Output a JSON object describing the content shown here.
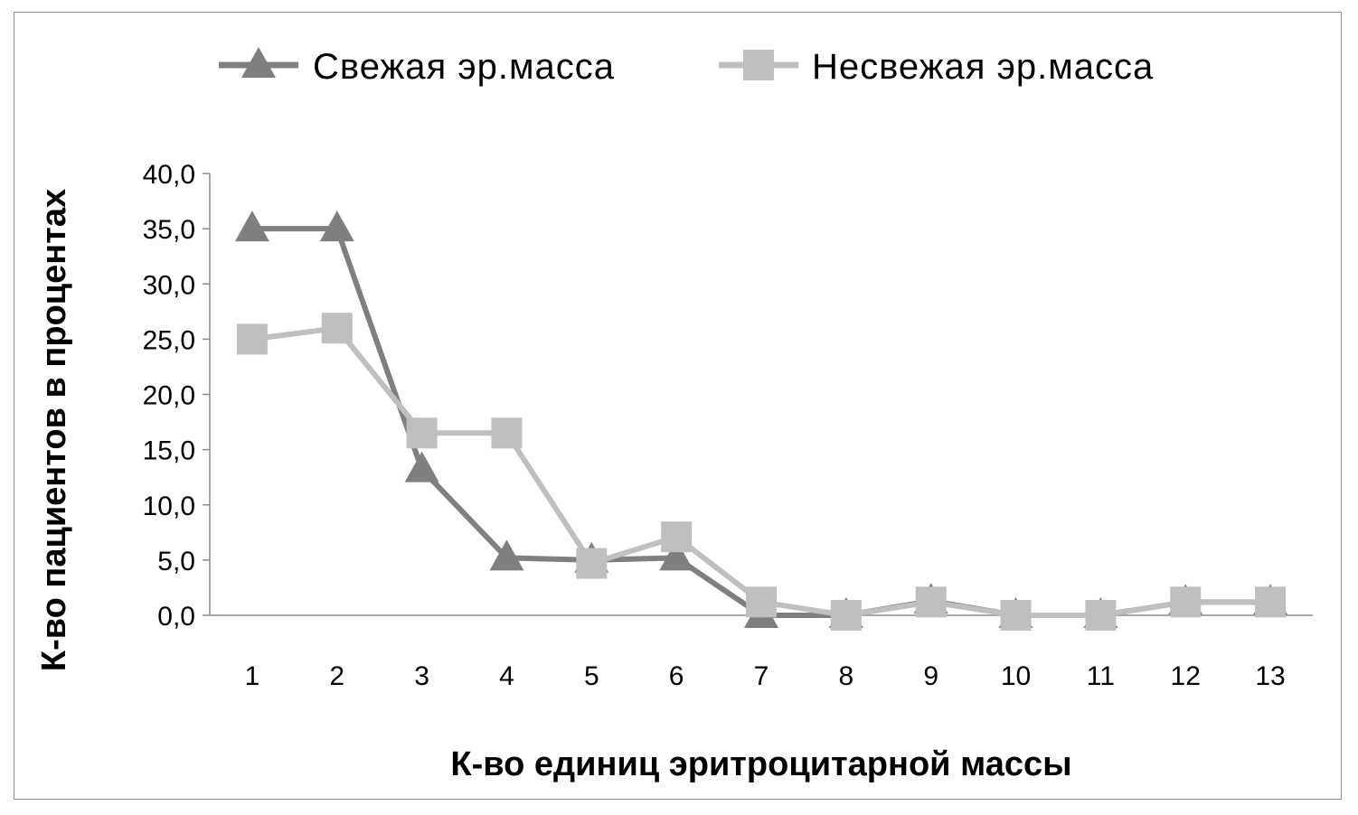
{
  "chart_data": {
    "type": "line",
    "title": "",
    "xlabel": "К-во единиц эритроцитарной массы",
    "ylabel": "К-во пациентов в процентах",
    "categories": [
      "1",
      "2",
      "3",
      "4",
      "5",
      "6",
      "7",
      "8",
      "9",
      "10",
      "11",
      "12",
      "13"
    ],
    "ylim": [
      0,
      40
    ],
    "yticks": [
      "0,0",
      "5,0",
      "10,0",
      "15,0",
      "20,0",
      "25,0",
      "30,0",
      "35,0",
      "40,0"
    ],
    "grid": false,
    "legend_position": "top",
    "series": [
      {
        "name": "Свежая эр.масса",
        "marker": "triangle",
        "color": "#7f7f7f",
        "values": [
          35.0,
          35.0,
          13.2,
          5.2,
          5.0,
          5.2,
          0.0,
          0.0,
          1.3,
          0.0,
          0.0,
          1.2,
          1.2
        ]
      },
      {
        "name": "Несвежая эр.масса",
        "marker": "square",
        "color": "#bfbfbf",
        "values": [
          25.0,
          26.0,
          16.5,
          16.5,
          4.7,
          7.1,
          1.2,
          0.0,
          1.2,
          0.0,
          0.0,
          1.2,
          1.2
        ]
      }
    ]
  }
}
